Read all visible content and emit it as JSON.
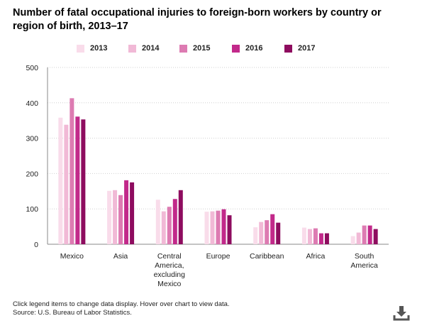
{
  "chart_data": {
    "type": "bar",
    "title": "Number of fatal occupational injuries to foreign-born workers by country or region of birth, 2013–17",
    "categories": [
      [
        "Mexico"
      ],
      [
        "Asia"
      ],
      [
        "Central",
        "America,",
        "excluding",
        "Mexico"
      ],
      [
        "Europe"
      ],
      [
        "Caribbean"
      ],
      [
        "Africa"
      ],
      [
        "South",
        "America"
      ]
    ],
    "series": [
      {
        "name": "2013",
        "color": "#f9dcea",
        "values": [
          358,
          151,
          126,
          92,
          48,
          47,
          23
        ]
      },
      {
        "name": "2014",
        "color": "#f1b9d6",
        "values": [
          338,
          153,
          93,
          93,
          63,
          43,
          33
        ]
      },
      {
        "name": "2015",
        "color": "#dd7bb2",
        "values": [
          413,
          139,
          106,
          95,
          68,
          45,
          53
        ]
      },
      {
        "name": "2016",
        "color": "#c2298a",
        "values": [
          361,
          181,
          128,
          99,
          85,
          31,
          53
        ]
      },
      {
        "name": "2017",
        "color": "#8e0c5f",
        "values": [
          353,
          175,
          153,
          82,
          61,
          31,
          43
        ]
      }
    ],
    "ylim": [
      0,
      500
    ],
    "yticks": [
      0,
      100,
      200,
      300,
      400,
      500
    ],
    "grid": true,
    "legend": "top"
  },
  "footer": {
    "note": "Click legend items to change data display. Hover over chart to view data.",
    "source": "Source: U.S. Bureau of Labor Statistics."
  },
  "icons": {
    "download": "download-icon"
  }
}
